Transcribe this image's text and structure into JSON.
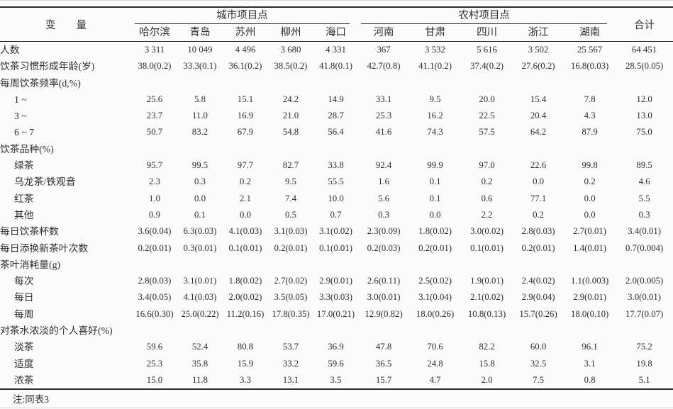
{
  "page": {
    "background": "#fbfbfb",
    "text_color": "#2e2e2e",
    "rule_color": "#2b2b2b"
  },
  "table": {
    "variable_header": "变　　量",
    "groups": [
      {
        "label": "城市项目点"
      },
      {
        "label": "农村项目点"
      }
    ],
    "total_header": "合计",
    "columns": [
      "哈尔滨",
      "青岛",
      "苏州",
      "柳州",
      "海口",
      "河南",
      "甘肃",
      "四川",
      "浙江",
      "湖南"
    ],
    "rows": [
      {
        "label": "人数",
        "indent": 0,
        "values": [
          "3 311",
          "10 049",
          "4 496",
          "3 680",
          "4 331",
          "367",
          "3 532",
          "5 616",
          "3 502",
          "25 567",
          "64 451"
        ]
      },
      {
        "label": "饮茶习惯形成年龄(岁)",
        "indent": 0,
        "values": [
          "38.0(0.2)",
          "33.3(0.1)",
          "36.1(0.2)",
          "38.5(0.2)",
          "41.8(0.1)",
          "42.7(0.8)",
          "41.1(0.2)",
          "37.4(0.2)",
          "27.6(0.2)",
          "16.8(0.03)",
          "28.5(0.05)"
        ]
      },
      {
        "label": "每周饮茶频率(d,%)",
        "indent": 0,
        "values": []
      },
      {
        "label": "1 ~",
        "indent": 1,
        "values": [
          "25.6",
          "5.8",
          "15.1",
          "24.2",
          "14.9",
          "33.1",
          "9.5",
          "20.0",
          "15.4",
          "7.8",
          "12.0"
        ]
      },
      {
        "label": "3 ~",
        "indent": 1,
        "values": [
          "23.7",
          "11.0",
          "16.9",
          "21.0",
          "28.7",
          "25.3",
          "16.2",
          "22.5",
          "20.4",
          "4.3",
          "13.0"
        ]
      },
      {
        "label": "6 ~ 7",
        "indent": 1,
        "values": [
          "50.7",
          "83.2",
          "67.9",
          "54.8",
          "56.4",
          "41.6",
          "74.3",
          "57.5",
          "64.2",
          "87.9",
          "75.0"
        ]
      },
      {
        "label": "饮茶品种(%)",
        "indent": 0,
        "values": []
      },
      {
        "label": "绿茶",
        "indent": 1,
        "values": [
          "95.7",
          "99.5",
          "97.7",
          "82.7",
          "33.8",
          "92.4",
          "99.9",
          "97.0",
          "22.6",
          "99.8",
          "89.5"
        ]
      },
      {
        "label": "乌龙茶/铁观音",
        "indent": 1,
        "values": [
          "2.3",
          "0.3",
          "0.2",
          "9.5",
          "55.5",
          "1.6",
          "0.1",
          "0.2",
          "0.0",
          "0.2",
          "4.6"
        ]
      },
      {
        "label": "红茶",
        "indent": 1,
        "values": [
          "1.0",
          "0.0",
          "2.1",
          "7.4",
          "10.0",
          "5.6",
          "0.1",
          "0.6",
          "77.1",
          "0.0",
          "5.5"
        ]
      },
      {
        "label": "其他",
        "indent": 1,
        "values": [
          "0.9",
          "0.1",
          "0.0",
          "0.5",
          "0.7",
          "0.3",
          "0.0",
          "2.2",
          "0.2",
          "0.0",
          "0.3"
        ]
      },
      {
        "label": "每日饮茶杯数",
        "indent": 0,
        "values": [
          "3.6(0.04)",
          "6.3(0.03)",
          "4.1(0.03)",
          "3.1(0.03)",
          "3.1(0.02)",
          "2.3(0.09)",
          "1.8(0.02)",
          "3.0(0.02)",
          "2.8(0.03)",
          "2.7(0.01)",
          "3.4(0.01)"
        ]
      },
      {
        "label": "每日添换新茶叶次数",
        "indent": 0,
        "values": [
          "0.2(0.01)",
          "0.3(0.01)",
          "0.1(0.01)",
          "0.2(0.01)",
          "0.1(0.01)",
          "0.2(0.03)",
          "0.2(0.01)",
          "0.1(0.01)",
          "0.2(0.01)",
          "1.4(0.01)",
          "0.7(0.004)"
        ]
      },
      {
        "label": "茶叶消耗量(g)",
        "indent": 0,
        "values": []
      },
      {
        "label": "每次",
        "indent": 1,
        "values": [
          "2.8(0.03)",
          "3.1(0.01)",
          "1.8(0.02)",
          "2.7(0.02)",
          "2.9(0.01)",
          "2.6(0.11)",
          "2.5(0.02)",
          "1.9(0.01)",
          "2.4(0.02)",
          "1.1(0.003)",
          "2.0(0.005)"
        ]
      },
      {
        "label": "每日",
        "indent": 1,
        "values": [
          "3.4(0.05)",
          "4.1(0.03)",
          "2.0(0.02)",
          "3.5(0.05)",
          "3.3(0.03)",
          "3.0(0.01)",
          "3.1(0.04)",
          "2.1(0.02)",
          "2.9(0.04)",
          "2.9(0.01)",
          "3.0(0.01)"
        ]
      },
      {
        "label": "每周",
        "indent": 1,
        "values": [
          "16.6(0.30)",
          "25.0(0.22)",
          "11.2(0.16)",
          "17.8(0.35)",
          "17.0(0.21)",
          "12.9(0.82)",
          "18.0(0.26)",
          "10.8(0.13)",
          "15.7(0.26)",
          "18.0(0.10)",
          "17.7(0.07)"
        ]
      },
      {
        "label": "对茶水浓淡的个人喜好(%)",
        "indent": 0,
        "values": []
      },
      {
        "label": "淡茶",
        "indent": 1,
        "values": [
          "59.6",
          "52.4",
          "80.8",
          "53.7",
          "36.9",
          "47.8",
          "70.6",
          "82.2",
          "60.0",
          "96.1",
          "75.2"
        ]
      },
      {
        "label": "适度",
        "indent": 1,
        "values": [
          "25.3",
          "35.8",
          "15.9",
          "33.2",
          "59.6",
          "36.5",
          "24.8",
          "15.8",
          "32.5",
          "3.1",
          "19.8"
        ]
      },
      {
        "label": "浓茶",
        "indent": 1,
        "values": [
          "15.0",
          "11.8",
          "3.3",
          "13.1",
          "3.5",
          "15.7",
          "4.7",
          "2.0",
          "7.5",
          "0.8",
          "5.1"
        ]
      }
    ],
    "note": "注:同表3"
  }
}
